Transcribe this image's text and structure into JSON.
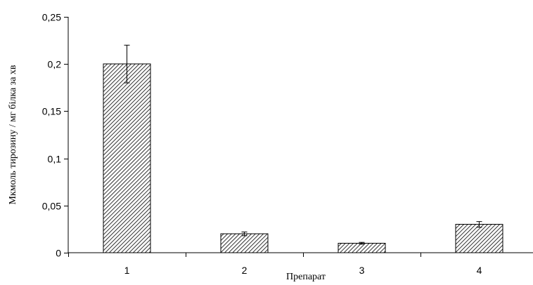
{
  "chart_data": {
    "type": "bar",
    "title": "",
    "xlabel": "Препарат",
    "ylabel": "Мкмоль тирозину / мг білка за хв",
    "categories": [
      "1",
      "2",
      "3",
      "4"
    ],
    "values": [
      0.2,
      0.02,
      0.01,
      0.03
    ],
    "errors": [
      0.02,
      0.002,
      0.001,
      0.003
    ],
    "ylim": [
      0,
      0.25
    ],
    "yticks": [
      0,
      0.05,
      0.1,
      0.15,
      0.2,
      0.25
    ],
    "ytick_labels": [
      "0",
      "0,05",
      "0,1",
      "0,15",
      "0,2",
      "0,25"
    ],
    "grid": false,
    "bar_fill": "hatched",
    "colors": {
      "bar_stroke": "#000000",
      "hatch": "#000000",
      "background": "#ffffff"
    }
  }
}
